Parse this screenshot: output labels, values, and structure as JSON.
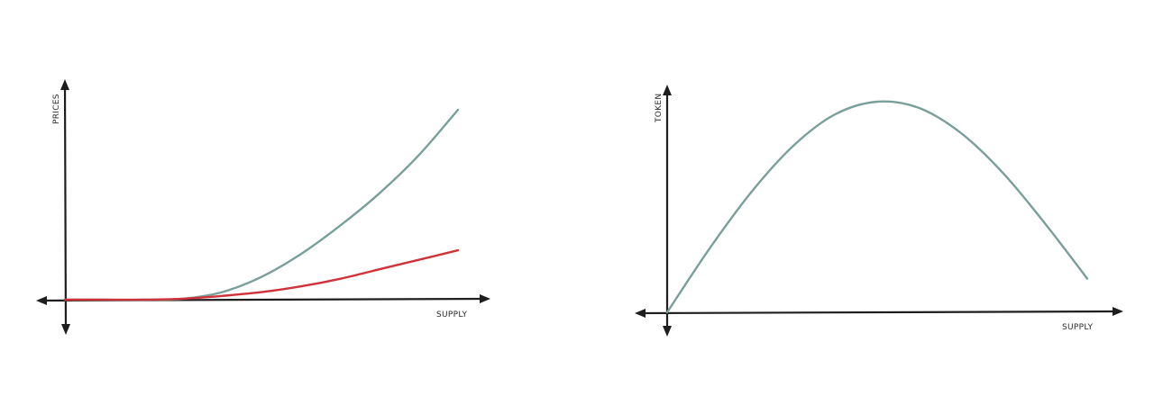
{
  "chart_data": [
    {
      "type": "line",
      "title": "",
      "xlabel": "SUPPLY",
      "ylabel": "PRICES",
      "grid": false,
      "xlim": [
        -0.07,
        1.07
      ],
      "ylim": [
        -0.16,
        1.1
      ],
      "series": [
        {
          "color": "#7a9e9a",
          "x": [
            0,
            0.1,
            0.2,
            0.3,
            0.4,
            0.5,
            0.6,
            0.7,
            0.8,
            0.9,
            1.0
          ],
          "y": [
            0,
            0.0,
            0.0,
            0.005,
            0.04,
            0.12,
            0.24,
            0.39,
            0.56,
            0.76,
            1.0
          ]
        },
        {
          "color": "#d0323a",
          "x": [
            0,
            0.1,
            0.2,
            0.3,
            0.4,
            0.5,
            0.6,
            0.7,
            0.8,
            0.9,
            1.0
          ],
          "y": [
            0,
            0.0,
            0.0,
            0.005,
            0.02,
            0.04,
            0.07,
            0.11,
            0.16,
            0.21,
            0.26
          ]
        }
      ]
    },
    {
      "type": "line",
      "title": "",
      "xlabel": "SUPPLY",
      "ylabel": "TOKEN",
      "grid": false,
      "xlim": [
        -0.07,
        1.07
      ],
      "ylim": [
        -0.07,
        1.07
      ],
      "series": [
        {
          "color": "#7a9e9a",
          "x": [
            0,
            0.1,
            0.2,
            0.3,
            0.4,
            0.5,
            0.6,
            0.7,
            0.8,
            0.9,
            1.0
          ],
          "y": [
            0,
            0.3,
            0.57,
            0.79,
            0.94,
            1.0,
            0.97,
            0.85,
            0.66,
            0.42,
            0.16
          ]
        }
      ]
    }
  ]
}
